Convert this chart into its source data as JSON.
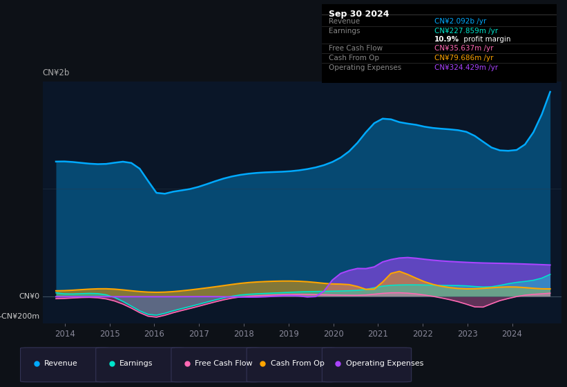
{
  "bg_color": "#0d1117",
  "plot_bg_color": "#0a1628",
  "title_box_bg": "#000000",
  "ylabel_top": "CN¥2b",
  "ylabel_zero": "CN¥0",
  "ylabel_neg": "-CN¥200m",
  "x_ticks": [
    2014,
    2015,
    2016,
    2017,
    2018,
    2019,
    2020,
    2021,
    2022,
    2023,
    2024
  ],
  "legend": [
    {
      "label": "Revenue",
      "color": "#00aaff"
    },
    {
      "label": "Earnings",
      "color": "#00e5cc"
    },
    {
      "label": "Free Cash Flow",
      "color": "#ff69b4"
    },
    {
      "label": "Cash From Op",
      "color": "#ffa500"
    },
    {
      "label": "Operating Expenses",
      "color": "#aa44ff"
    }
  ],
  "info_date": "Sep 30 2024",
  "info_rows": [
    {
      "label": "Revenue",
      "value": "CN¥2.092b /yr",
      "value_color": "#00aaff"
    },
    {
      "label": "Earnings",
      "value": "CN¥227.859m /yr",
      "value_color": "#00e5cc"
    },
    {
      "label": "",
      "value": "10.9% profit margin",
      "value_color": "#ffffff",
      "bold_prefix": "10.9%"
    },
    {
      "label": "Free Cash Flow",
      "value": "CN¥35.637m /yr",
      "value_color": "#ff69b4"
    },
    {
      "label": "Cash From Op",
      "value": "CN¥79.686m /yr",
      "value_color": "#ffa500"
    },
    {
      "label": "Operating Expenses",
      "value": "CN¥324.429m /yr",
      "value_color": "#aa44ff"
    }
  ],
  "ylim": [
    -270,
    2200
  ],
  "xlim": [
    2013.5,
    2025.1
  ]
}
